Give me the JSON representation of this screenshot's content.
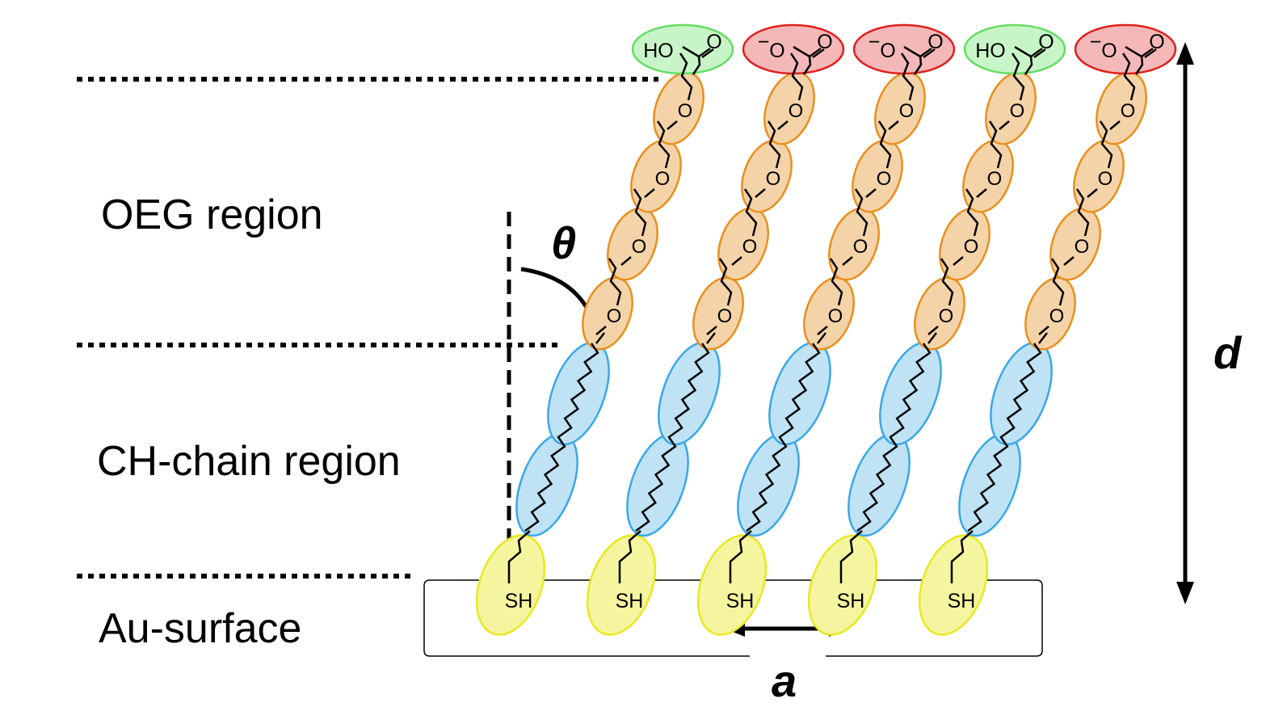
{
  "regions": {
    "oeg": "OEG region",
    "ch_chain": "CH-chain region",
    "au_surface": "Au-surface"
  },
  "dimensions": {
    "tilt_angle": "θ",
    "spacing": "a",
    "thickness": "d"
  },
  "molecules": [
    {
      "head_group": "COOH",
      "head_state": "protonated"
    },
    {
      "head_group": "COO−",
      "head_state": "deprotonated"
    },
    {
      "head_group": "COO−",
      "head_state": "deprotonated"
    },
    {
      "head_group": "COOH",
      "head_state": "protonated"
    },
    {
      "head_group": "COO−",
      "head_state": "deprotonated"
    }
  ],
  "atoms": {
    "thiol": "SH",
    "ether_oxygen": "O",
    "hydroxyl": "HO",
    "carbonyl_oxygen": "O",
    "anion_oxygen": "O",
    "negative_charge": "−"
  },
  "colors": {
    "protonated_head": "#c8f5c8",
    "protonated_head_stroke": "#66dd66",
    "deprotonated_head": "#f5b8b8",
    "deprotonated_head_stroke": "#e02020",
    "oeg_unit": "#f5d3a8",
    "oeg_unit_stroke": "#e89020",
    "alkyl_segment": "#bfe3f5",
    "alkyl_segment_stroke": "#3aa8e8",
    "thiol_anchor": "#f5f5a0",
    "thiol_anchor_stroke": "#e8e820",
    "line": "#000000"
  }
}
